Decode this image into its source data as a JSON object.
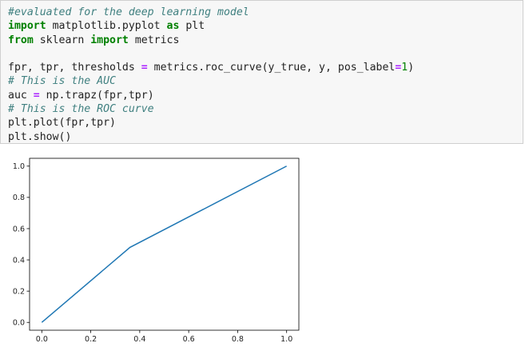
{
  "cell": {
    "lines": [
      [
        {
          "t": "#evaluated for the deep learning model",
          "c": "cm"
        }
      ],
      [
        {
          "t": "import",
          "c": "kw"
        },
        {
          "t": " matplotlib.pyplot ",
          "c": ""
        },
        {
          "t": "as",
          "c": "kw"
        },
        {
          "t": " plt",
          "c": ""
        }
      ],
      [
        {
          "t": "from",
          "c": "kw"
        },
        {
          "t": " sklearn ",
          "c": ""
        },
        {
          "t": "import",
          "c": "kw"
        },
        {
          "t": " metrics",
          "c": ""
        }
      ],
      [],
      [
        {
          "t": "fpr, tpr, thresholds ",
          "c": ""
        },
        {
          "t": "=",
          "c": "op"
        },
        {
          "t": " metrics.roc_curve(y_true, y, pos_label",
          "c": ""
        },
        {
          "t": "=",
          "c": "op"
        },
        {
          "t": "1",
          "c": "nm"
        },
        {
          "t": ")",
          "c": ""
        }
      ],
      [
        {
          "t": "# This is the AUC",
          "c": "cm"
        }
      ],
      [
        {
          "t": "auc ",
          "c": ""
        },
        {
          "t": "=",
          "c": "op"
        },
        {
          "t": " np.trapz(fpr,tpr)",
          "c": ""
        }
      ],
      [
        {
          "t": "# This is the ROC curve",
          "c": "cm"
        }
      ],
      [
        {
          "t": "plt.plot(fpr,tpr)",
          "c": ""
        }
      ],
      [
        {
          "t": "plt.show()",
          "c": ""
        }
      ]
    ]
  },
  "chart_data": {
    "type": "line",
    "series": [
      {
        "x": [
          0.0,
          0.36,
          1.0
        ],
        "y": [
          0.0,
          0.48,
          1.0
        ],
        "color": "#1f77b4"
      }
    ],
    "xlim": [
      -0.05,
      1.05
    ],
    "ylim": [
      -0.05,
      1.05
    ],
    "xticks": [
      0.0,
      0.2,
      0.4,
      0.6,
      0.8,
      1.0
    ],
    "yticks": [
      0.0,
      0.2,
      0.4,
      0.6,
      0.8,
      1.0
    ],
    "xtick_labels": [
      "0.0",
      "0.2",
      "0.4",
      "0.6",
      "0.8",
      "1.0"
    ],
    "ytick_labels": [
      "0.0",
      "0.2",
      "0.4",
      "0.6",
      "0.8",
      "1.0"
    ],
    "grid": false
  }
}
